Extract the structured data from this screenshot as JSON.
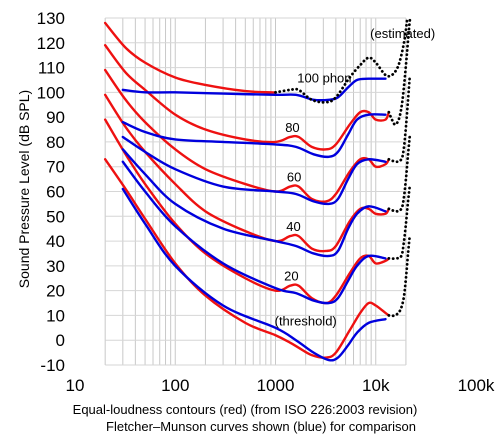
{
  "chart_data": {
    "type": "line",
    "ylabel": "Sound Pressure Level (dB SPL)",
    "xscale": "log",
    "xlim": [
      20,
      22000
    ],
    "ylim": [
      -10,
      130
    ],
    "x_ticks": [
      {
        "value": 10,
        "label": "10"
      },
      {
        "value": 100,
        "label": "100"
      },
      {
        "value": 1000,
        "label": "1000"
      },
      {
        "value": 10000,
        "label": "10k"
      },
      {
        "value": 100000,
        "label": "100k"
      }
    ],
    "y_ticks": [
      -10,
      0,
      10,
      20,
      30,
      40,
      50,
      60,
      70,
      80,
      90,
      100,
      110,
      120,
      130
    ],
    "grid": true,
    "annotations": [
      {
        "text": "(estimated)",
        "x": 8800,
        "y": 122
      },
      {
        "text": "100 phon",
        "x": 1650,
        "y": 104
      },
      {
        "text": "80",
        "x": 1250,
        "y": 84
      },
      {
        "text": "60",
        "x": 1300,
        "y": 64
      },
      {
        "text": "40",
        "x": 1280,
        "y": 44
      },
      {
        "text": "20",
        "x": 1220,
        "y": 24
      },
      {
        "text": "(threshold)",
        "x": 980,
        "y": 6
      }
    ],
    "caption": [
      "Equal-loudness contours (red) (from ISO 226:2003 revision)",
      "Fletcher–Munson curves shown (blue) for comparison"
    ],
    "series": [
      {
        "group": "iso",
        "color": "#ee1111",
        "style": "solid",
        "points": [
          [
            20,
            128
          ],
          [
            32,
            118
          ],
          [
            50,
            112
          ],
          [
            100,
            106
          ],
          [
            200,
            103
          ],
          [
            500,
            100.5
          ],
          [
            900,
            100
          ],
          [
            1000,
            100
          ]
        ]
      },
      {
        "group": "iso",
        "color": "#ee1111",
        "style": "solid",
        "points": [
          [
            20,
            119
          ],
          [
            32,
            108
          ],
          [
            50,
            101
          ],
          [
            100,
            91
          ],
          [
            200,
            85
          ],
          [
            500,
            81
          ],
          [
            1000,
            80
          ],
          [
            1400,
            82
          ],
          [
            1700,
            82
          ],
          [
            2300,
            78
          ],
          [
            3200,
            77
          ],
          [
            4000,
            79
          ],
          [
            5500,
            87
          ],
          [
            7000,
            92
          ],
          [
            8500,
            92
          ],
          [
            10000,
            89
          ],
          [
            12500,
            89
          ],
          [
            13500,
            92
          ]
        ]
      },
      {
        "group": "iso",
        "color": "#ee1111",
        "style": "solid",
        "points": [
          [
            20,
            109
          ],
          [
            32,
            97
          ],
          [
            50,
            88
          ],
          [
            100,
            77
          ],
          [
            200,
            69
          ],
          [
            500,
            63
          ],
          [
            1000,
            60
          ],
          [
            1400,
            62
          ],
          [
            1700,
            62
          ],
          [
            2300,
            57
          ],
          [
            3200,
            56
          ],
          [
            4000,
            59
          ],
          [
            5500,
            68
          ],
          [
            7000,
            73
          ],
          [
            8500,
            73
          ],
          [
            10000,
            70
          ],
          [
            12500,
            71
          ],
          [
            13500,
            73
          ]
        ]
      },
      {
        "group": "iso",
        "color": "#ee1111",
        "style": "solid",
        "points": [
          [
            20,
            99
          ],
          [
            32,
            86
          ],
          [
            50,
            76
          ],
          [
            100,
            63
          ],
          [
            200,
            52
          ],
          [
            500,
            44
          ],
          [
            1000,
            40
          ],
          [
            1400,
            42
          ],
          [
            1700,
            42
          ],
          [
            2300,
            37
          ],
          [
            3200,
            36
          ],
          [
            4000,
            38
          ],
          [
            5500,
            48
          ],
          [
            7000,
            53
          ],
          [
            8500,
            53
          ],
          [
            10000,
            51
          ],
          [
            12500,
            51
          ],
          [
            13500,
            53
          ]
        ]
      },
      {
        "group": "iso",
        "color": "#ee1111",
        "style": "solid",
        "points": [
          [
            20,
            89
          ],
          [
            32,
            75
          ],
          [
            50,
            63
          ],
          [
            100,
            47
          ],
          [
            200,
            35
          ],
          [
            500,
            25
          ],
          [
            1000,
            20
          ],
          [
            1400,
            22
          ],
          [
            1700,
            22
          ],
          [
            2300,
            17
          ],
          [
            3200,
            15
          ],
          [
            4000,
            18
          ],
          [
            5500,
            27
          ],
          [
            7000,
            33
          ],
          [
            8500,
            34
          ],
          [
            10000,
            31
          ],
          [
            12500,
            32
          ],
          [
            13500,
            33
          ]
        ]
      },
      {
        "group": "iso",
        "color": "#ee1111",
        "style": "solid",
        "points": [
          [
            20,
            73
          ],
          [
            32,
            61
          ],
          [
            50,
            49
          ],
          [
            100,
            31
          ],
          [
            200,
            18
          ],
          [
            500,
            7
          ],
          [
            1000,
            2
          ],
          [
            1400,
            -1
          ],
          [
            1700,
            -3
          ],
          [
            2300,
            -6
          ],
          [
            3200,
            -7
          ],
          [
            4000,
            -5
          ],
          [
            5500,
            4
          ],
          [
            7000,
            11
          ],
          [
            8500,
            15
          ],
          [
            10000,
            14
          ],
          [
            12500,
            11
          ],
          [
            13500,
            10
          ]
        ]
      },
      {
        "group": "fm",
        "color": "#0000dd",
        "style": "solid",
        "points": [
          [
            30,
            101
          ],
          [
            50,
            100
          ],
          [
            100,
            100
          ],
          [
            300,
            99.5
          ],
          [
            1000,
            99
          ],
          [
            1600,
            99
          ],
          [
            2400,
            97
          ],
          [
            3400,
            97
          ],
          [
            4200,
            98
          ],
          [
            5300,
            102
          ],
          [
            6500,
            105
          ],
          [
            8500,
            105.5
          ],
          [
            12500,
            105.5
          ]
        ]
      },
      {
        "group": "fm",
        "color": "#0000dd",
        "style": "solid",
        "points": [
          [
            30,
            88
          ],
          [
            50,
            84
          ],
          [
            100,
            81
          ],
          [
            300,
            80
          ],
          [
            1000,
            79
          ],
          [
            1600,
            78
          ],
          [
            2400,
            75
          ],
          [
            3400,
            74
          ],
          [
            4200,
            76
          ],
          [
            5300,
            83
          ],
          [
            6500,
            89
          ],
          [
            8500,
            91
          ],
          [
            12500,
            91
          ]
        ]
      },
      {
        "group": "fm",
        "color": "#0000dd",
        "style": "solid",
        "points": [
          [
            30,
            82
          ],
          [
            50,
            76
          ],
          [
            100,
            69
          ],
          [
            300,
            62
          ],
          [
            1000,
            60
          ],
          [
            1600,
            59
          ],
          [
            2400,
            56
          ],
          [
            3400,
            55
          ],
          [
            4200,
            57
          ],
          [
            5300,
            65
          ],
          [
            6500,
            71
          ],
          [
            8500,
            73
          ],
          [
            12500,
            72
          ]
        ]
      },
      {
        "group": "fm",
        "color": "#0000dd",
        "style": "solid",
        "points": [
          [
            30,
            77
          ],
          [
            50,
            67
          ],
          [
            100,
            55
          ],
          [
            300,
            45
          ],
          [
            1000,
            40
          ],
          [
            1600,
            38
          ],
          [
            2400,
            35
          ],
          [
            3400,
            34
          ],
          [
            4200,
            36
          ],
          [
            5300,
            45
          ],
          [
            6500,
            51
          ],
          [
            8500,
            54
          ],
          [
            12500,
            52
          ]
        ]
      },
      {
        "group": "fm",
        "color": "#0000dd",
        "style": "solid",
        "points": [
          [
            30,
            72
          ],
          [
            50,
            60
          ],
          [
            100,
            46
          ],
          [
            300,
            31
          ],
          [
            1000,
            21
          ],
          [
            1600,
            19
          ],
          [
            2400,
            16
          ],
          [
            3400,
            15
          ],
          [
            4200,
            17
          ],
          [
            5300,
            24
          ],
          [
            6500,
            30
          ],
          [
            8500,
            34
          ],
          [
            12500,
            33
          ]
        ]
      },
      {
        "group": "fm",
        "color": "#0000dd",
        "style": "solid",
        "points": [
          [
            30,
            61
          ],
          [
            50,
            47
          ],
          [
            100,
            30
          ],
          [
            300,
            14
          ],
          [
            1000,
            5
          ],
          [
            1600,
            0
          ],
          [
            2400,
            -5
          ],
          [
            3400,
            -8
          ],
          [
            4200,
            -7
          ],
          [
            5300,
            -2
          ],
          [
            6500,
            3
          ],
          [
            8500,
            7
          ],
          [
            12500,
            8.5
          ]
        ]
      },
      {
        "group": "estimated",
        "color": "#000000",
        "style": "dotted",
        "points": [
          [
            1000,
            100
          ],
          [
            1400,
            101
          ],
          [
            1700,
            101
          ],
          [
            2300,
            97
          ],
          [
            3200,
            96
          ],
          [
            4000,
            98
          ],
          [
            5500,
            106
          ],
          [
            7000,
            111
          ],
          [
            8500,
            114
          ],
          [
            10000,
            112
          ],
          [
            12500,
            107
          ],
          [
            14500,
            107
          ],
          [
            16500,
            110
          ],
          [
            18000,
            115
          ],
          [
            19500,
            122
          ],
          [
            20500,
            129
          ]
        ]
      },
      {
        "group": "estimated",
        "color": "#000000",
        "style": "dotted",
        "points": [
          [
            13500,
            92
          ],
          [
            14500,
            89
          ],
          [
            15500,
            87
          ],
          [
            16500,
            88
          ],
          [
            17500,
            91
          ],
          [
            18500,
            97
          ],
          [
            19500,
            106
          ],
          [
            20500,
            116
          ],
          [
            21500,
            126
          ],
          [
            22000,
            130
          ]
        ]
      },
      {
        "group": "estimated",
        "color": "#000000",
        "style": "dotted",
        "points": [
          [
            13500,
            73
          ],
          [
            16000,
            72
          ],
          [
            18000,
            73
          ],
          [
            19000,
            77
          ],
          [
            20000,
            86
          ],
          [
            21000,
            97
          ],
          [
            21800,
            106
          ]
        ]
      },
      {
        "group": "estimated",
        "color": "#000000",
        "style": "dotted",
        "points": [
          [
            13500,
            53
          ],
          [
            16000,
            52
          ],
          [
            18000,
            53
          ],
          [
            19000,
            57
          ],
          [
            20000,
            65
          ],
          [
            21000,
            75
          ],
          [
            21800,
            82
          ]
        ]
      },
      {
        "group": "estimated",
        "color": "#000000",
        "style": "dotted",
        "points": [
          [
            13500,
            33
          ],
          [
            16000,
            33
          ],
          [
            18000,
            34
          ],
          [
            19000,
            39
          ],
          [
            20000,
            47
          ],
          [
            21000,
            56
          ],
          [
            21800,
            62
          ]
        ]
      },
      {
        "group": "estimated",
        "color": "#000000",
        "style": "dotted",
        "points": [
          [
            13500,
            10
          ],
          [
            15500,
            10
          ],
          [
            17500,
            12
          ],
          [
            19000,
            17
          ],
          [
            20000,
            25
          ],
          [
            21000,
            35
          ],
          [
            21800,
            42
          ]
        ]
      }
    ]
  }
}
